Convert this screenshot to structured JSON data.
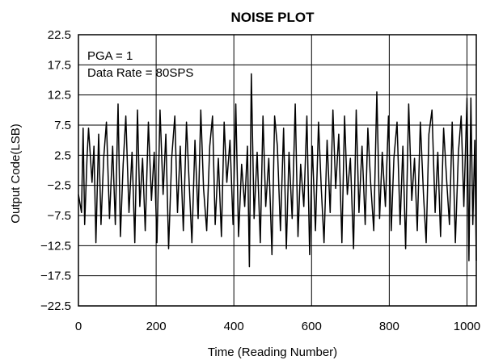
{
  "chart_data": {
    "type": "line",
    "title": "NOISE PLOT",
    "xlabel": "Time (Reading Number)",
    "ylabel": "Output Code(LSB)",
    "xlim": [
      0,
      1024
    ],
    "ylim": [
      -22.5,
      22.5
    ],
    "x_ticks": [
      0,
      200,
      400,
      600,
      800,
      1000
    ],
    "x_tick_labels": [
      "0",
      "200",
      "400",
      "600",
      "800",
      "1000"
    ],
    "y_ticks": [
      22.5,
      17.5,
      12.5,
      7.5,
      2.5,
      -2.5,
      -7.5,
      -12.5,
      -17.5,
      -22.5
    ],
    "y_tick_labels": [
      "22.5",
      "17.5",
      "12.5",
      "7.5",
      "2.5",
      "−2.5",
      "−7.5",
      "−12.5",
      "−17.5",
      "−22.5"
    ],
    "grid": true,
    "annotations": [
      "PGA = 1",
      "Data Rate = 80SPS"
    ],
    "series": [
      {
        "color": "#000000",
        "x": [
          0,
          8,
          12,
          16,
          22,
          26,
          35,
          40,
          45,
          52,
          58,
          65,
          72,
          80,
          88,
          95,
          102,
          108,
          115,
          122,
          130,
          138,
          145,
          152,
          158,
          165,
          172,
          180,
          188,
          195,
          202,
          210,
          218,
          225,
          232,
          240,
          248,
          255,
          262,
          270,
          278,
          285,
          292,
          300,
          308,
          315,
          322,
          330,
          338,
          345,
          352,
          360,
          368,
          375,
          382,
          390,
          398,
          405,
          412,
          420,
          428,
          435,
          440,
          445,
          452,
          460,
          468,
          475,
          482,
          490,
          498,
          505,
          512,
          520,
          528,
          535,
          542,
          550,
          558,
          565,
          572,
          580,
          588,
          595,
          602,
          610,
          618,
          625,
          632,
          640,
          648,
          655,
          662,
          670,
          678,
          685,
          692,
          700,
          708,
          715,
          722,
          730,
          738,
          745,
          752,
          760,
          768,
          775,
          782,
          790,
          798,
          805,
          812,
          820,
          828,
          835,
          842,
          850,
          858,
          865,
          872,
          880,
          888,
          895,
          902,
          910,
          918,
          925,
          932,
          940,
          948,
          955,
          962,
          970,
          978,
          985,
          992,
          1000,
          1005,
          1010,
          1015,
          1020,
          1024
        ],
        "y": [
          -4,
          -7,
          7,
          -9,
          2,
          7,
          -2,
          4,
          -12,
          6,
          -9,
          2,
          8,
          -8,
          4,
          -9,
          11,
          -11,
          1,
          9,
          -7,
          3,
          -12,
          10,
          -6,
          2,
          -10,
          8,
          -5,
          3,
          -12,
          10,
          -4,
          6,
          -13,
          2,
          9,
          -7,
          4,
          -10,
          8,
          -2,
          -12,
          5,
          -8,
          10,
          -3,
          -10,
          4,
          9,
          -9,
          2,
          -11,
          8,
          -2,
          5,
          -9,
          11,
          -11,
          1,
          -6,
          4,
          -16,
          16,
          -8,
          3,
          -12,
          9,
          -6,
          2,
          -14,
          9,
          4,
          -10,
          7,
          -13,
          3,
          -8,
          11,
          -11,
          1,
          -6,
          9,
          -14,
          4,
          -10,
          8,
          -3,
          -12,
          5,
          -7,
          10,
          -3,
          6,
          -12,
          9,
          -4,
          2,
          -13,
          10,
          -7,
          4,
          -9,
          7,
          -2,
          -10,
          13,
          -8,
          3,
          -6,
          9,
          -10,
          2,
          8,
          -9,
          4,
          -13,
          11,
          -5,
          2,
          -10,
          8,
          -4,
          -12,
          6,
          10,
          -7,
          3,
          -11,
          7,
          -2,
          -9,
          8,
          -12,
          3,
          9,
          -6,
          12,
          -15,
          12,
          -9,
          5,
          -15
        ]
      }
    ]
  }
}
